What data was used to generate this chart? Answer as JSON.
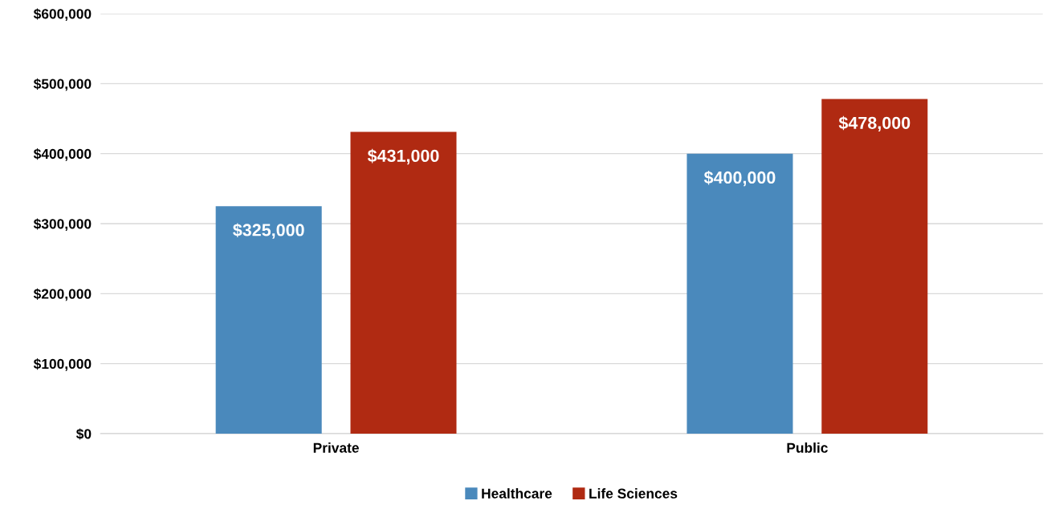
{
  "chart_data": {
    "type": "bar",
    "categories": [
      "Private",
      "Public"
    ],
    "series": [
      {
        "name": "Healthcare",
        "color": "#4a89bc",
        "values": [
          325000,
          400000
        ],
        "value_labels": [
          "$325,000",
          "$400,000"
        ]
      },
      {
        "name": "Life Sciences",
        "color": "#b02a12",
        "values": [
          431000,
          478000
        ],
        "value_labels": [
          "$431,000",
          "$478,000"
        ]
      }
    ],
    "ylim": [
      0,
      600000
    ],
    "yticks": [
      {
        "value": 0,
        "label": "$0"
      },
      {
        "value": 100000,
        "label": "$100,000"
      },
      {
        "value": 200000,
        "label": "$200,000"
      },
      {
        "value": 300000,
        "label": "$300,000"
      },
      {
        "value": 400000,
        "label": "$400,000"
      },
      {
        "value": 500000,
        "label": "$500,000"
      },
      {
        "value": 600000,
        "label": "$600,000"
      }
    ],
    "grid": "y",
    "legend": "bottom"
  }
}
